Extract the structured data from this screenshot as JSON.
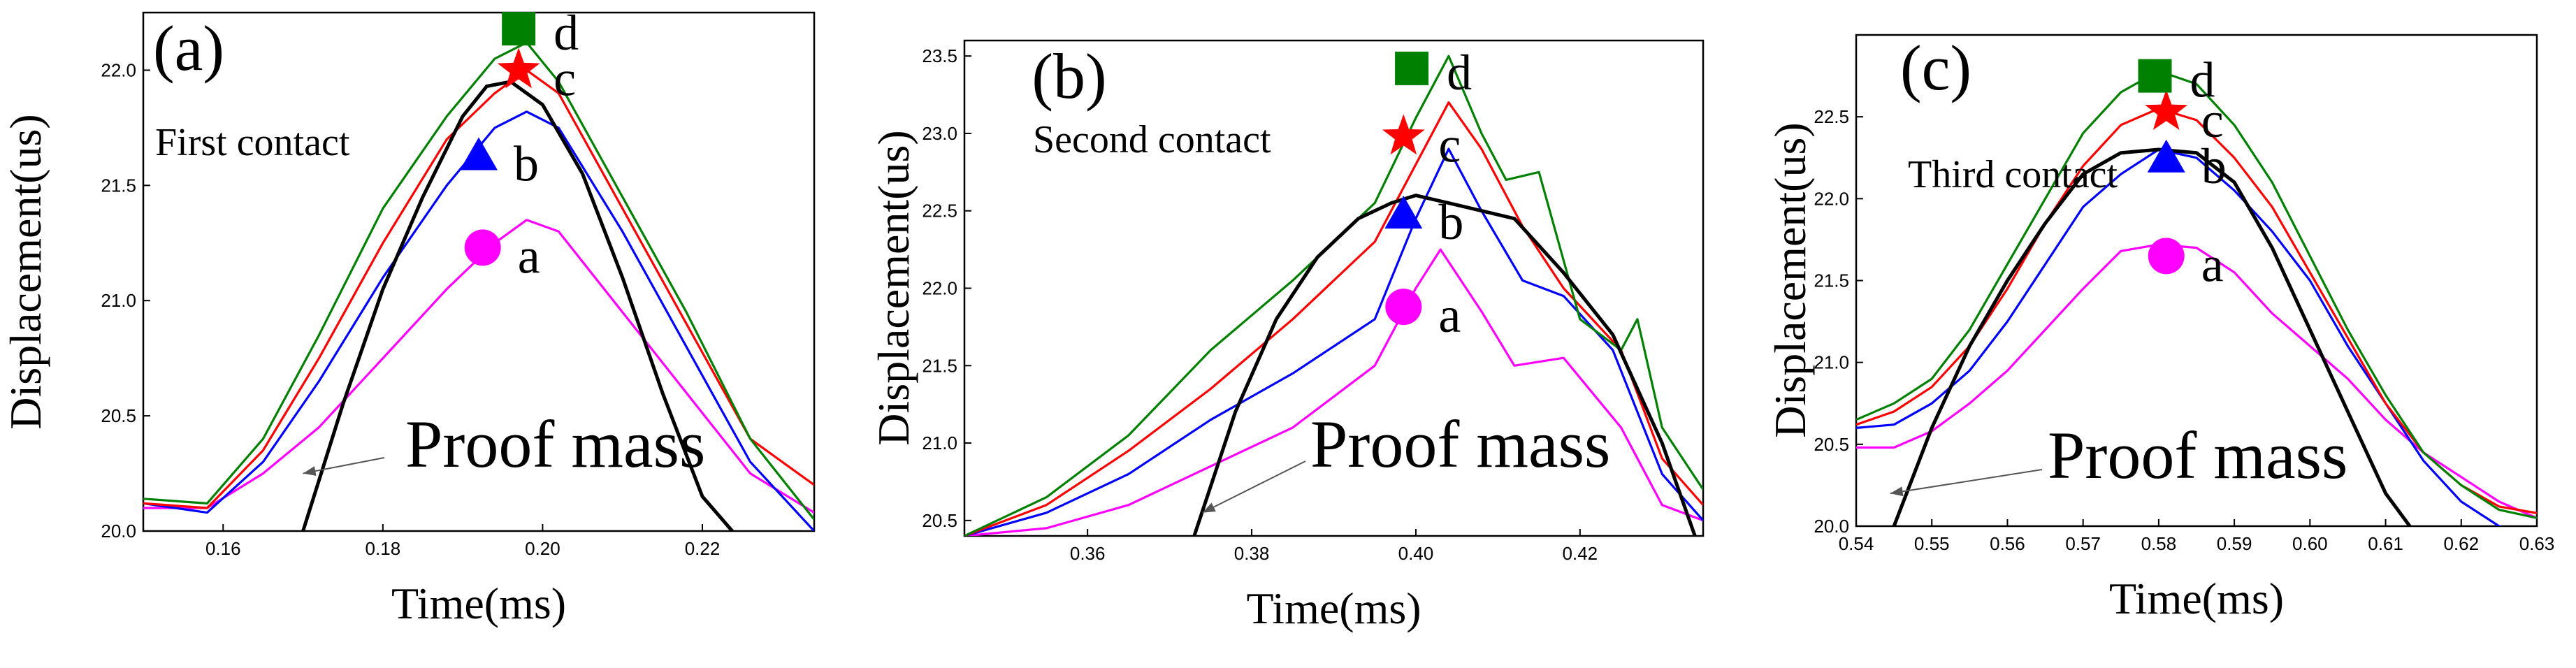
{
  "chart_data": [
    {
      "type": "line",
      "panel": "(a)",
      "annotation": "First contact",
      "proof_label": "Proof mass",
      "xlabel": "Time(ms)",
      "ylabel": "Displacement(us)",
      "xlim": [
        0.15,
        0.234
      ],
      "ylim": [
        20.0,
        22.25
      ],
      "xticks": [
        0.16,
        0.18,
        0.2,
        0.22
      ],
      "xtick_labels": [
        "0.16",
        "0.18",
        "0.20",
        "0.22"
      ],
      "yticks": [
        20.0,
        20.5,
        21.0,
        21.5,
        22.0
      ],
      "ytick_labels": [
        "20.0",
        "20.5",
        "21.0",
        "21.5",
        "22.0"
      ],
      "series": [
        {
          "name": "a",
          "color": "#ff00ff",
          "x": [
            0.15,
            0.158,
            0.165,
            0.172,
            0.18,
            0.188,
            0.194,
            0.198,
            0.202,
            0.21,
            0.218,
            0.226,
            0.234
          ],
          "y": [
            20.1,
            20.1,
            20.25,
            20.45,
            20.75,
            21.05,
            21.25,
            21.35,
            21.3,
            20.95,
            20.6,
            20.25,
            20.08
          ]
        },
        {
          "name": "b",
          "color": "#0000ff",
          "x": [
            0.15,
            0.158,
            0.165,
            0.172,
            0.18,
            0.188,
            0.194,
            0.198,
            0.202,
            0.21,
            0.218,
            0.226,
            0.234
          ],
          "y": [
            20.12,
            20.08,
            20.3,
            20.65,
            21.1,
            21.5,
            21.75,
            21.82,
            21.75,
            21.3,
            20.8,
            20.3,
            20.0
          ]
        },
        {
          "name": "c",
          "color": "#ff0000",
          "x": [
            0.15,
            0.158,
            0.165,
            0.172,
            0.18,
            0.188,
            0.194,
            0.198,
            0.202,
            0.21,
            0.218,
            0.226,
            0.234
          ],
          "y": [
            20.12,
            20.1,
            20.35,
            20.75,
            21.25,
            21.7,
            21.9,
            22.0,
            21.9,
            21.4,
            20.9,
            20.4,
            20.2
          ]
        },
        {
          "name": "d",
          "color": "#008000",
          "x": [
            0.15,
            0.158,
            0.165,
            0.172,
            0.18,
            0.188,
            0.194,
            0.198,
            0.202,
            0.21,
            0.218,
            0.226,
            0.234
          ],
          "y": [
            20.14,
            20.12,
            20.4,
            20.85,
            21.4,
            21.8,
            22.05,
            22.12,
            21.95,
            21.45,
            20.95,
            20.4,
            20.05
          ]
        },
        {
          "name": "Proof mass",
          "color": "#000000",
          "x": [
            0.17,
            0.175,
            0.18,
            0.185,
            0.19,
            0.193,
            0.196,
            0.198,
            0.2,
            0.205,
            0.21,
            0.215,
            0.22,
            0.225
          ],
          "y": [
            20.0,
            20.55,
            21.05,
            21.45,
            21.8,
            21.93,
            21.95,
            21.9,
            21.85,
            21.55,
            21.1,
            20.6,
            20.15,
            19.95
          ]
        }
      ],
      "markers": [
        {
          "label": "a",
          "shape": "circle",
          "color": "#ff00ff",
          "x": 0.1925,
          "y": 21.23
        },
        {
          "label": "b",
          "shape": "triangle",
          "color": "#0000ff",
          "x": 0.192,
          "y": 21.63
        },
        {
          "label": "c",
          "shape": "star",
          "color": "#ff0000",
          "x": 0.197,
          "y": 22.0
        },
        {
          "label": "d",
          "shape": "square",
          "color": "#008000",
          "x": 0.197,
          "y": 22.18
        }
      ]
    },
    {
      "type": "line",
      "panel": "(b)",
      "annotation": "Second contact",
      "proof_label": "Proof mass",
      "xlabel": "Time(ms)",
      "ylabel": "Displacement(us)",
      "xlim": [
        0.345,
        0.435
      ],
      "ylim": [
        20.4,
        23.6
      ],
      "xticks": [
        0.36,
        0.38,
        0.4,
        0.42
      ],
      "xtick_labels": [
        "0.36",
        "0.38",
        "0.40",
        "0.42"
      ],
      "yticks": [
        20.5,
        21.0,
        21.5,
        22.0,
        22.5,
        23.0,
        23.5
      ],
      "ytick_labels": [
        "20.5",
        "21.0",
        "21.5",
        "22.0",
        "22.5",
        "23.0",
        "23.5"
      ],
      "series": [
        {
          "name": "a",
          "color": "#ff00ff",
          "x": [
            0.345,
            0.355,
            0.365,
            0.375,
            0.385,
            0.395,
            0.4,
            0.403,
            0.408,
            0.412,
            0.418,
            0.425,
            0.43,
            0.435
          ],
          "y": [
            20.4,
            20.45,
            20.6,
            20.85,
            21.1,
            21.5,
            22.0,
            22.25,
            21.85,
            21.5,
            21.55,
            21.1,
            20.6,
            20.5
          ]
        },
        {
          "name": "b",
          "color": "#0000ff",
          "x": [
            0.345,
            0.355,
            0.365,
            0.375,
            0.385,
            0.395,
            0.4,
            0.404,
            0.408,
            0.413,
            0.418,
            0.424,
            0.43,
            0.435
          ],
          "y": [
            20.4,
            20.55,
            20.8,
            21.15,
            21.45,
            21.8,
            22.45,
            22.9,
            22.5,
            22.05,
            21.95,
            21.6,
            20.8,
            20.5
          ]
        },
        {
          "name": "c",
          "color": "#ff0000",
          "x": [
            0.345,
            0.355,
            0.365,
            0.375,
            0.385,
            0.395,
            0.4,
            0.404,
            0.408,
            0.413,
            0.418,
            0.425,
            0.43,
            0.435
          ],
          "y": [
            20.4,
            20.6,
            20.95,
            21.35,
            21.8,
            22.3,
            22.8,
            23.2,
            22.9,
            22.4,
            22.0,
            21.6,
            20.9,
            20.6
          ]
        },
        {
          "name": "d",
          "color": "#008000",
          "x": [
            0.345,
            0.355,
            0.365,
            0.375,
            0.385,
            0.395,
            0.4,
            0.404,
            0.408,
            0.411,
            0.415,
            0.42,
            0.425,
            0.427,
            0.43,
            0.435
          ],
          "y": [
            20.4,
            20.65,
            21.05,
            21.6,
            22.05,
            22.55,
            23.1,
            23.5,
            23.0,
            22.7,
            22.75,
            21.8,
            21.6,
            21.8,
            21.1,
            20.7
          ]
        },
        {
          "name": "Proof mass",
          "color": "#000000",
          "x": [
            0.373,
            0.378,
            0.383,
            0.388,
            0.393,
            0.397,
            0.4,
            0.404,
            0.408,
            0.412,
            0.418,
            0.424,
            0.43,
            0.434
          ],
          "y": [
            20.4,
            21.2,
            21.8,
            22.2,
            22.45,
            22.55,
            22.6,
            22.55,
            22.5,
            22.45,
            22.1,
            21.7,
            21.0,
            20.4
          ]
        }
      ],
      "markers": [
        {
          "label": "a",
          "shape": "circle",
          "color": "#ff00ff",
          "x": 0.3985,
          "y": 21.88
        },
        {
          "label": "b",
          "shape": "triangle",
          "color": "#0000ff",
          "x": 0.3985,
          "y": 22.48
        },
        {
          "label": "c",
          "shape": "star",
          "color": "#ff0000",
          "x": 0.3985,
          "y": 22.98
        },
        {
          "label": "d",
          "shape": "square",
          "color": "#008000",
          "x": 0.3995,
          "y": 23.42
        }
      ]
    },
    {
      "type": "line",
      "panel": "(c)",
      "annotation": "Third contact",
      "proof_label": "Proof mass",
      "xlabel": "Time(ms)",
      "ylabel": "Displacement(us)",
      "xlim": [
        0.54,
        0.63
      ],
      "ylim": [
        20.0,
        23.0
      ],
      "xticks": [
        0.54,
        0.55,
        0.56,
        0.57,
        0.58,
        0.59,
        0.6,
        0.61,
        0.62,
        0.63
      ],
      "xtick_labels": [
        "0.54",
        "0.55",
        "0.56",
        "0.57",
        "0.58",
        "0.59",
        "0.60",
        "0.61",
        "0.62",
        "0.63"
      ],
      "yticks": [
        20.0,
        20.5,
        21.0,
        21.5,
        22.0,
        22.5
      ],
      "ytick_labels": [
        "20.0",
        "20.5",
        "21.0",
        "21.5",
        "22.0",
        "22.5"
      ],
      "series": [
        {
          "name": "a",
          "color": "#ff00ff",
          "x": [
            0.54,
            0.545,
            0.55,
            0.555,
            0.56,
            0.565,
            0.57,
            0.575,
            0.58,
            0.585,
            0.59,
            0.595,
            0.6,
            0.605,
            0.61,
            0.615,
            0.62,
            0.625,
            0.63
          ],
          "y": [
            20.48,
            20.48,
            20.58,
            20.75,
            20.95,
            21.2,
            21.45,
            21.68,
            21.72,
            21.7,
            21.55,
            21.3,
            21.1,
            20.9,
            20.65,
            20.45,
            20.3,
            20.15,
            20.05
          ]
        },
        {
          "name": "b",
          "color": "#0000ff",
          "x": [
            0.54,
            0.545,
            0.55,
            0.555,
            0.56,
            0.565,
            0.57,
            0.575,
            0.58,
            0.585,
            0.59,
            0.595,
            0.6,
            0.605,
            0.61,
            0.615,
            0.62,
            0.625,
            0.63
          ],
          "y": [
            20.6,
            20.62,
            20.75,
            20.95,
            21.25,
            21.6,
            21.95,
            22.15,
            22.3,
            22.25,
            22.05,
            21.8,
            21.5,
            21.1,
            20.75,
            20.4,
            20.15,
            20.0,
            19.9
          ]
        },
        {
          "name": "c",
          "color": "#ff0000",
          "x": [
            0.54,
            0.545,
            0.55,
            0.555,
            0.56,
            0.565,
            0.57,
            0.575,
            0.58,
            0.585,
            0.59,
            0.595,
            0.6,
            0.605,
            0.61,
            0.615,
            0.62,
            0.625,
            0.63
          ],
          "y": [
            20.62,
            20.7,
            20.85,
            21.1,
            21.45,
            21.85,
            22.2,
            22.45,
            22.55,
            22.48,
            22.25,
            21.95,
            21.55,
            21.15,
            20.75,
            20.45,
            20.25,
            20.12,
            20.08
          ]
        },
        {
          "name": "d",
          "color": "#008000",
          "x": [
            0.54,
            0.545,
            0.55,
            0.555,
            0.56,
            0.565,
            0.57,
            0.575,
            0.58,
            0.585,
            0.59,
            0.595,
            0.6,
            0.605,
            0.61,
            0.615,
            0.62,
            0.625,
            0.63
          ],
          "y": [
            20.65,
            20.75,
            20.9,
            21.2,
            21.6,
            22.0,
            22.4,
            22.65,
            22.78,
            22.7,
            22.45,
            22.1,
            21.65,
            21.2,
            20.8,
            20.45,
            20.25,
            20.1,
            20.05
          ]
        },
        {
          "name": "Proof mass",
          "color": "#000000",
          "x": [
            0.545,
            0.55,
            0.555,
            0.56,
            0.565,
            0.57,
            0.575,
            0.58,
            0.585,
            0.59,
            0.595,
            0.6,
            0.605,
            0.61,
            0.614
          ],
          "y": [
            20.0,
            20.6,
            21.1,
            21.5,
            21.85,
            22.15,
            22.28,
            22.3,
            22.28,
            22.1,
            21.7,
            21.2,
            20.7,
            20.2,
            19.95
          ]
        }
      ],
      "markers": [
        {
          "label": "a",
          "shape": "circle",
          "color": "#ff00ff",
          "x": 0.581,
          "y": 21.65
        },
        {
          "label": "b",
          "shape": "triangle",
          "color": "#0000ff",
          "x": 0.581,
          "y": 22.25
        },
        {
          "label": "c",
          "shape": "star",
          "color": "#ff0000",
          "x": 0.581,
          "y": 22.53
        },
        {
          "label": "d",
          "shape": "square",
          "color": "#008000",
          "x": 0.5795,
          "y": 22.75
        }
      ]
    }
  ]
}
